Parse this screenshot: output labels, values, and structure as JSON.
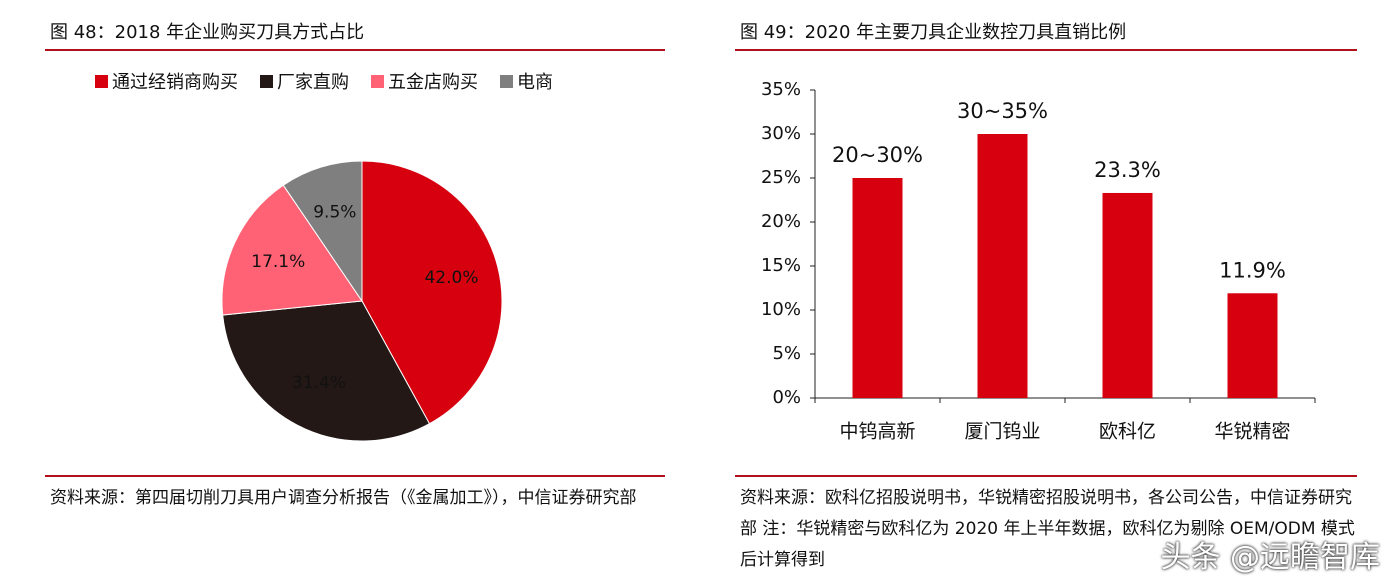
{
  "chart_data": [
    {
      "type": "pie",
      "title": "图 48：2018 年企业购买刀具方式占比",
      "categories": [
        "通过经销商购买",
        "厂家直购",
        "五金店购买",
        "电商"
      ],
      "values": [
        42.0,
        31.4,
        17.1,
        9.5
      ],
      "value_labels": [
        "42.0%",
        "31.4%",
        "17.1%",
        "9.5%"
      ],
      "colors": [
        "#d7000f",
        "#231815",
        "#ff6275",
        "#7f7f7f"
      ],
      "legend": "top",
      "source": "资料来源：第四届切削刀具用户调查分析报告（《金属加工》），中信证券研究部"
    },
    {
      "type": "bar",
      "title": "图 49：2020 年主要刀具企业数控刀具直销比例",
      "categories": [
        "中钨高新",
        "厦门钨业",
        "欧科亿",
        "华锐精密"
      ],
      "values": [
        25,
        30,
        23.3,
        11.9
      ],
      "value_labels": [
        "20~30%",
        "30~35%",
        "23.3%",
        "11.9%"
      ],
      "color": "#d7000f",
      "ylim": [
        0,
        35
      ],
      "yticks": [
        {
          "value": 0,
          "label": "0%"
        },
        {
          "value": 5,
          "label": "5%"
        },
        {
          "value": 10,
          "label": "10%"
        },
        {
          "value": 15,
          "label": "15%"
        },
        {
          "value": 20,
          "label": "20%"
        },
        {
          "value": 25,
          "label": "25%"
        },
        {
          "value": 30,
          "label": "30%"
        },
        {
          "value": 35,
          "label": "35%"
        }
      ],
      "grid": false,
      "source": "资料来源：欧科亿招股说明书，华锐精密招股说明书，各公司公告，中信证券研究部  注：华锐精密与欧科亿为 2020 年上半年数据，欧科亿为剔除 OEM/ODM 模式后计算得到"
    }
  ],
  "watermark": "头条 @远瞻智库"
}
